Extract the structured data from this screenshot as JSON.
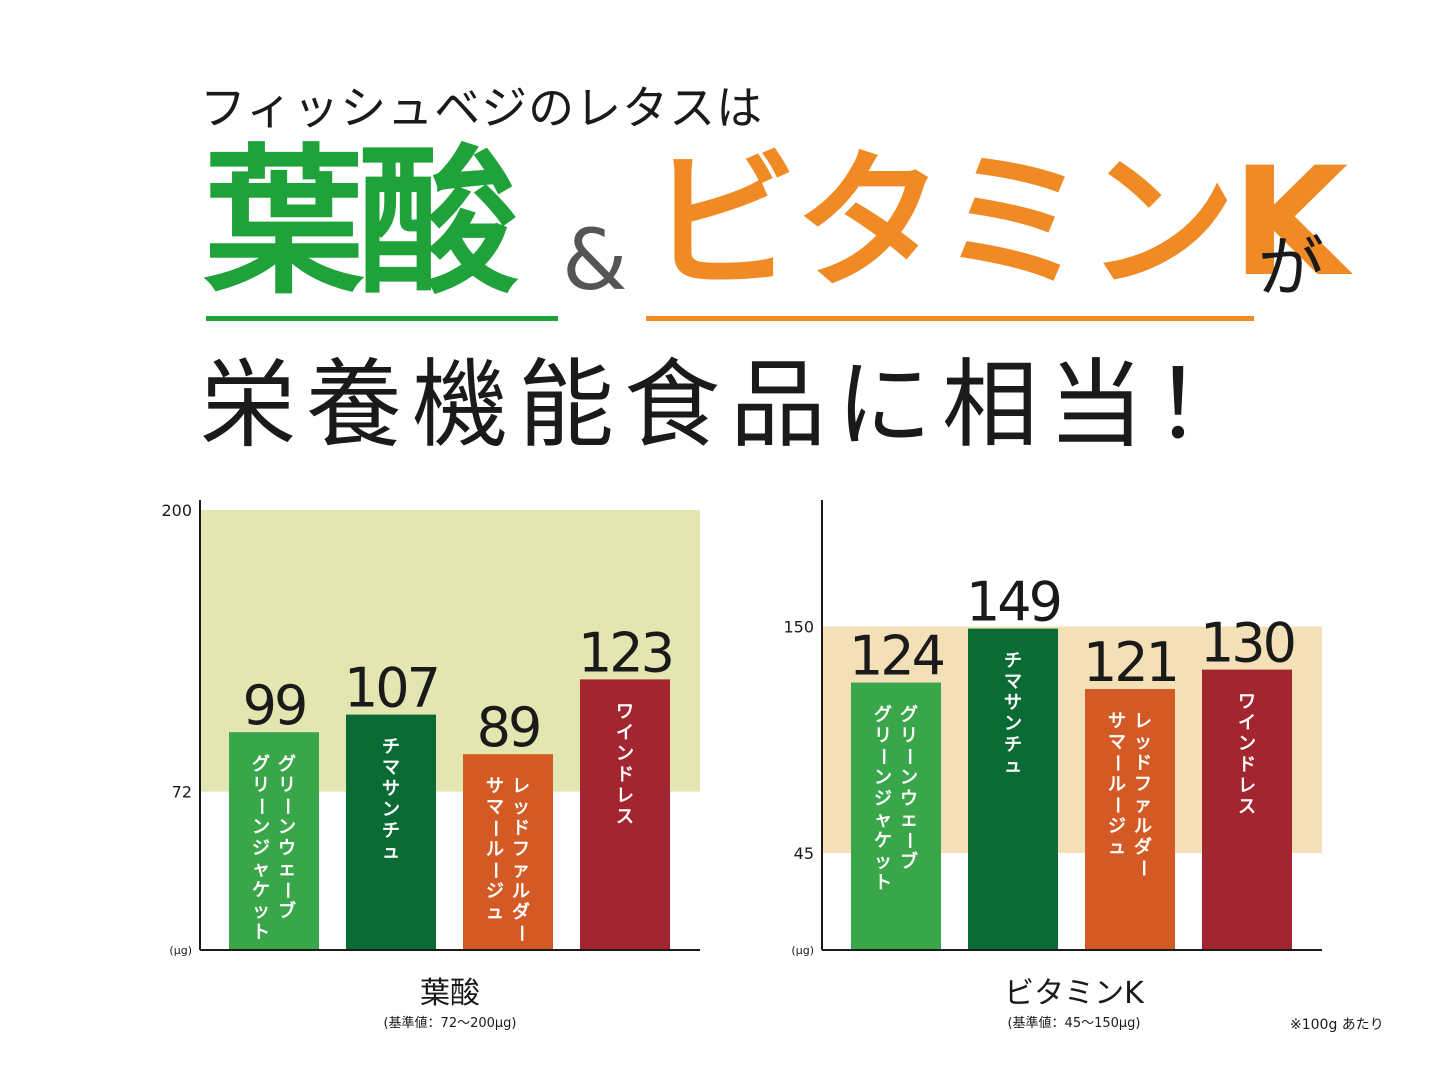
{
  "headline": {
    "line1": "フィッシュベジのレタスは",
    "big1": "葉酸",
    "amp": "&",
    "big2": "ビタミンK",
    "suffix": "が",
    "line3": "栄養機能食品に相当！"
  },
  "footnote": "※100g あたり",
  "colors": {
    "green": "#1fa23a",
    "orange": "#f08a24"
  },
  "chart_data": [
    {
      "type": "bar",
      "title": "葉酸",
      "subtitle": "(基準値：72～200μg)",
      "unit": "(μg)",
      "categories": [
        "グリーンウェーブ\nグリーンジャケット",
        "チマサンチュ",
        "レッドファルダー\nサマールージュ",
        "ワインドレス"
      ],
      "values": [
        99,
        107,
        89,
        123
      ],
      "bar_colors": [
        "#3aa64a",
        "#0b6b35",
        "#d45a25",
        "#a32530"
      ],
      "yticks": [
        72,
        200
      ],
      "reference_band": [
        72,
        200
      ],
      "band_color": "#e3e6b0",
      "ylim": [
        0,
        200
      ]
    },
    {
      "type": "bar",
      "title": "ビタミンK",
      "subtitle": "(基準値：45～150μg)",
      "unit": "(μg)",
      "categories": [
        "グリーンウェーブ\nグリーンジャケット",
        "チマサンチュ",
        "レッドファルダー\nサマールージュ",
        "ワインドレス"
      ],
      "values": [
        124,
        149,
        121,
        130
      ],
      "bar_colors": [
        "#3aa64a",
        "#0b6b35",
        "#d45a25",
        "#a32530"
      ],
      "yticks": [
        45,
        150
      ],
      "reference_band": [
        45,
        150
      ],
      "band_color": "#f3e0b6",
      "ylim": [
        0,
        204
      ]
    }
  ]
}
